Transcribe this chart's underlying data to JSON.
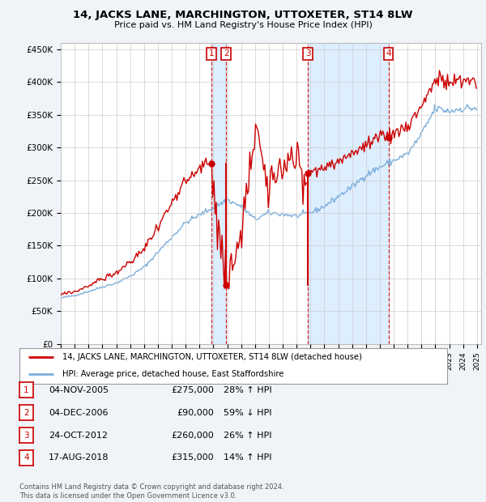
{
  "title": "14, JACKS LANE, MARCHINGTON, UTTOXETER, ST14 8LW",
  "subtitle": "Price paid vs. HM Land Registry's House Price Index (HPI)",
  "ylabel_ticks": [
    "£0",
    "£50K",
    "£100K",
    "£150K",
    "£200K",
    "£250K",
    "£300K",
    "£350K",
    "£400K",
    "£450K"
  ],
  "ytick_values": [
    0,
    50000,
    100000,
    150000,
    200000,
    250000,
    300000,
    350000,
    400000,
    450000
  ],
  "sales": [
    {
      "label": "1",
      "date": "04-NOV-2005",
      "price": 275000,
      "pct": "28%",
      "dir": "↑",
      "x": 2005.84
    },
    {
      "label": "2",
      "date": "04-DEC-2006",
      "price": 90000,
      "pct": "59%",
      "dir": "↓",
      "x": 2006.92
    },
    {
      "label": "3",
      "date": "24-OCT-2012",
      "price": 260000,
      "pct": "26%",
      "dir": "↑",
      "x": 2012.81
    },
    {
      "label": "4",
      "date": "17-AUG-2018",
      "price": 315000,
      "pct": "14%",
      "dir": "↑",
      "x": 2018.62
    }
  ],
  "legend_property_label": "14, JACKS LANE, MARCHINGTON, UTTOXETER, ST14 8LW (detached house)",
  "legend_hpi_label": "HPI: Average price, detached house, East Staffordshire",
  "property_color": "#cc0000",
  "hpi_color": "#7aaddb",
  "shade_color": "#ddeeff",
  "footnote": "Contains HM Land Registry data © Crown copyright and database right 2024.\nThis data is licensed under the Open Government Licence v3.0.",
  "background_color": "#f0f4f8",
  "plot_bg_color": "#ffffff",
  "grid_color": "#cccccc",
  "hpi_base_prices": {
    "1995": 70000,
    "1996": 74000,
    "1997": 80000,
    "1998": 87000,
    "1999": 93000,
    "2000": 103000,
    "2001": 117000,
    "2002": 140000,
    "2003": 163000,
    "2004": 185000,
    "2005": 197000,
    "2006": 208000,
    "2007": 220000,
    "2008": 210000,
    "2009": 190000,
    "2010": 200000,
    "2011": 198000,
    "2012": 195000,
    "2013": 200000,
    "2014": 210000,
    "2015": 225000,
    "2016": 240000,
    "2017": 258000,
    "2018": 270000,
    "2019": 280000,
    "2020": 290000,
    "2021": 320000,
    "2022": 360000,
    "2023": 355000,
    "2024": 360000
  }
}
